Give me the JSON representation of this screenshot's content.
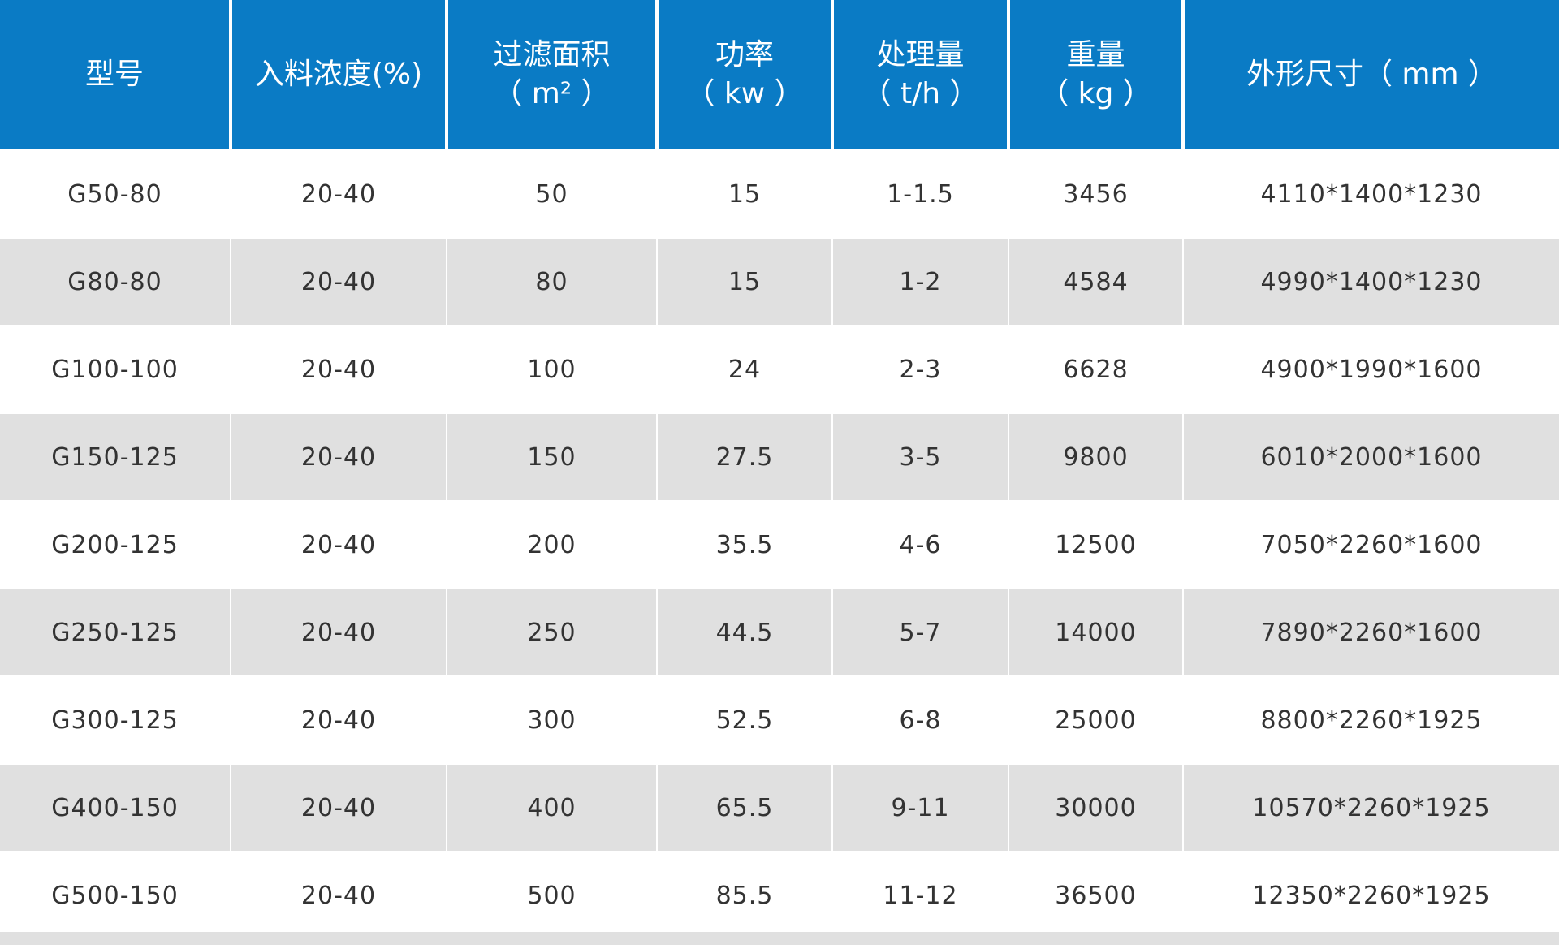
{
  "table": {
    "header": [
      [
        "型号"
      ],
      [
        "入料浓度(%)"
      ],
      [
        "过滤面积",
        "（ m² ）"
      ],
      [
        "功率",
        "（ kw ）"
      ],
      [
        "处理量",
        "（ t/h ）"
      ],
      [
        "重量",
        "（ kg ）"
      ],
      [
        "外形尺寸（ mm ）"
      ]
    ],
    "rows": [
      [
        "G50-80",
        "20-40",
        "50",
        "15",
        "1-1.5",
        "3456",
        "4110*1400*1230"
      ],
      [
        "G80-80",
        "20-40",
        "80",
        "15",
        "1-2",
        "4584",
        "4990*1400*1230"
      ],
      [
        "G100-100",
        "20-40",
        "100",
        "24",
        "2-3",
        "6628",
        "4900*1990*1600"
      ],
      [
        "G150-125",
        "20-40",
        "150",
        "27.5",
        "3-5",
        "9800",
        "6010*2000*1600"
      ],
      [
        "G200-125",
        "20-40",
        "200",
        "35.5",
        "4-6",
        "12500",
        "7050*2260*1600"
      ],
      [
        "G250-125",
        "20-40",
        "250",
        "44.5",
        "5-7",
        "14000",
        "7890*2260*1600"
      ],
      [
        "G300-125",
        "20-40",
        "300",
        "52.5",
        "6-8",
        "25000",
        "8800*2260*1925"
      ],
      [
        "G400-150",
        "20-40",
        "400",
        "65.5",
        "9-11",
        "30000",
        "10570*2260*1925"
      ],
      [
        "G500-150",
        "20-40",
        "500",
        "85.5",
        "11-12",
        "36500",
        "12350*2260*1925"
      ]
    ]
  }
}
